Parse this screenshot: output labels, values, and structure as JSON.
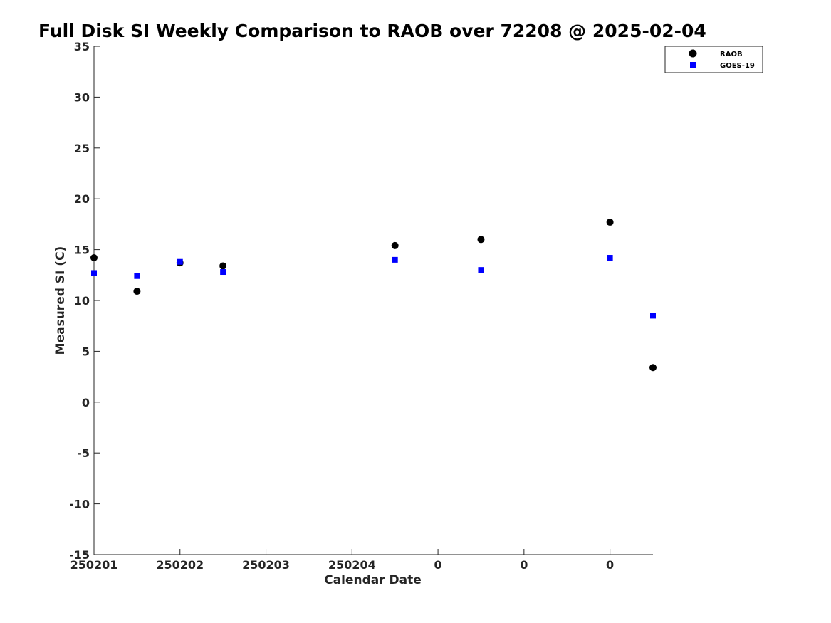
{
  "chart_data": {
    "type": "scatter",
    "title": "Full Disk SI Weekly Comparison to RAOB over 72208 @ 2025-02-04",
    "xlabel": "Calendar Date",
    "ylabel": "Measured SI (C)",
    "ylim": [
      -15,
      35
    ],
    "yticks": [
      35,
      30,
      25,
      20,
      15,
      10,
      5,
      0,
      -5,
      -10,
      -15
    ],
    "xlim": [
      0,
      6.5
    ],
    "xticks": [
      {
        "x": 0,
        "label": "250201"
      },
      {
        "x": 1,
        "label": "250202"
      },
      {
        "x": 2,
        "label": "250203"
      },
      {
        "x": 3,
        "label": "250204"
      },
      {
        "x": 4,
        "label": "0"
      },
      {
        "x": 5,
        "label": "0"
      },
      {
        "x": 6,
        "label": "0"
      }
    ],
    "legend_position": "top-right",
    "series": [
      {
        "name": "RAOB",
        "marker": "circle",
        "color": "#000000",
        "points": [
          {
            "x": 0,
            "y": 14.2
          },
          {
            "x": 0.5,
            "y": 10.9
          },
          {
            "x": 1,
            "y": 13.7
          },
          {
            "x": 1.5,
            "y": 13.4
          },
          {
            "x": 3.5,
            "y": 15.4
          },
          {
            "x": 4.5,
            "y": 16.0
          },
          {
            "x": 6.0,
            "y": 17.7
          },
          {
            "x": 6.5,
            "y": 3.4
          }
        ]
      },
      {
        "name": "GOES-19",
        "marker": "square",
        "color": "#0000ff",
        "points": [
          {
            "x": 0,
            "y": 12.7
          },
          {
            "x": 0.5,
            "y": 12.4
          },
          {
            "x": 1,
            "y": 13.8
          },
          {
            "x": 1.5,
            "y": 12.8
          },
          {
            "x": 3.5,
            "y": 14.0
          },
          {
            "x": 4.5,
            "y": 13.0
          },
          {
            "x": 6.0,
            "y": 14.2
          },
          {
            "x": 6.5,
            "y": 8.5
          }
        ]
      }
    ]
  }
}
